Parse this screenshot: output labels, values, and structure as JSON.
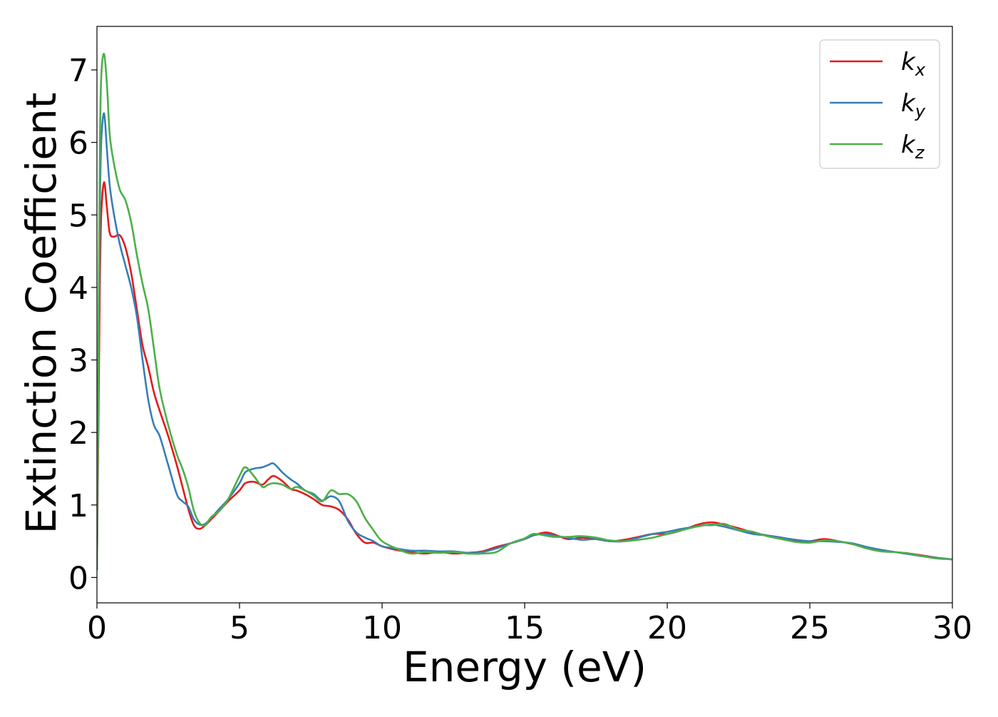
{
  "chart_data": {
    "type": "line",
    "title": "",
    "xlabel": "Energy (eV)",
    "ylabel": "Extinction Coefficient",
    "xlim": [
      0,
      30
    ],
    "ylim": [
      -0.35,
      7.6
    ],
    "xticks": [
      0,
      5,
      10,
      15,
      20,
      25,
      30
    ],
    "yticks": [
      0,
      1,
      2,
      3,
      4,
      5,
      6,
      7
    ],
    "grid": false,
    "legend_position": "top-right",
    "series": [
      {
        "name": "k_x",
        "label_base": "k",
        "label_sub": "x",
        "color": "#e41a1c",
        "x": [
          0,
          0.05,
          0.1,
          0.15,
          0.25,
          0.35,
          0.45,
          0.6,
          0.8,
          1.0,
          1.2,
          1.4,
          1.6,
          1.8,
          2.0,
          2.2,
          2.5,
          2.8,
          3.0,
          3.2,
          3.4,
          3.6,
          3.8,
          4.0,
          4.3,
          4.6,
          5.0,
          5.2,
          5.5,
          5.8,
          6.0,
          6.2,
          6.5,
          6.8,
          7.0,
          7.3,
          7.6,
          7.9,
          8.2,
          8.5,
          8.8,
          9.1,
          9.4,
          9.7,
          10.0,
          10.5,
          11,
          11.5,
          12,
          12.5,
          13,
          13.5,
          14,
          14.5,
          15,
          15.3,
          15.7,
          16,
          16.5,
          17,
          17.5,
          18,
          18.5,
          19,
          19.5,
          20,
          20.5,
          21,
          21.3,
          21.6,
          22,
          22.5,
          23,
          23.5,
          24,
          24.5,
          25,
          25.5,
          26,
          26.5,
          27,
          27.5,
          28,
          28.5,
          29,
          29.5,
          30
        ],
        "y": [
          0.1,
          2.0,
          4.0,
          5.0,
          5.45,
          5.1,
          4.75,
          4.7,
          4.72,
          4.55,
          4.2,
          3.7,
          3.2,
          2.9,
          2.55,
          2.3,
          1.95,
          1.55,
          1.25,
          0.95,
          0.72,
          0.67,
          0.72,
          0.8,
          0.92,
          1.05,
          1.2,
          1.3,
          1.32,
          1.28,
          1.35,
          1.4,
          1.33,
          1.22,
          1.2,
          1.15,
          1.08,
          1.0,
          0.98,
          0.93,
          0.8,
          0.6,
          0.48,
          0.48,
          0.43,
          0.38,
          0.35,
          0.33,
          0.35,
          0.33,
          0.34,
          0.36,
          0.42,
          0.47,
          0.53,
          0.58,
          0.62,
          0.6,
          0.53,
          0.55,
          0.53,
          0.5,
          0.52,
          0.56,
          0.6,
          0.6,
          0.65,
          0.72,
          0.75,
          0.76,
          0.73,
          0.68,
          0.62,
          0.58,
          0.55,
          0.5,
          0.5,
          0.53,
          0.5,
          0.46,
          0.42,
          0.38,
          0.35,
          0.33,
          0.3,
          0.27,
          0.25
        ]
      },
      {
        "name": "k_y",
        "label_base": "k",
        "label_sub": "y",
        "color": "#377eb8",
        "x": [
          0,
          0.05,
          0.1,
          0.15,
          0.25,
          0.35,
          0.45,
          0.6,
          0.8,
          1.0,
          1.2,
          1.4,
          1.6,
          1.8,
          2.0,
          2.2,
          2.5,
          2.8,
          3.0,
          3.2,
          3.4,
          3.6,
          3.8,
          4.0,
          4.3,
          4.6,
          5.0,
          5.2,
          5.5,
          5.8,
          6.0,
          6.2,
          6.5,
          6.8,
          7.0,
          7.3,
          7.6,
          7.9,
          8.2,
          8.5,
          8.8,
          9.1,
          9.4,
          9.7,
          10.0,
          10.5,
          11,
          11.5,
          12,
          12.5,
          13,
          13.5,
          14,
          14.5,
          15,
          15.3,
          15.7,
          16,
          16.5,
          17,
          17.5,
          18,
          18.5,
          19,
          19.5,
          20,
          20.5,
          21,
          21.3,
          21.6,
          22,
          22.5,
          23,
          23.5,
          24,
          24.5,
          25,
          25.5,
          26,
          26.5,
          27,
          27.5,
          28,
          28.5,
          29,
          29.5,
          30
        ],
        "y": [
          0.1,
          2.5,
          5.0,
          6.0,
          6.4,
          5.9,
          5.4,
          5.0,
          4.6,
          4.3,
          4.0,
          3.6,
          3.0,
          2.45,
          2.1,
          1.95,
          1.55,
          1.15,
          1.05,
          0.98,
          0.8,
          0.73,
          0.74,
          0.82,
          0.95,
          1.08,
          1.3,
          1.45,
          1.5,
          1.52,
          1.55,
          1.57,
          1.45,
          1.35,
          1.3,
          1.2,
          1.15,
          1.06,
          1.12,
          1.05,
          0.78,
          0.62,
          0.55,
          0.5,
          0.43,
          0.4,
          0.37,
          0.37,
          0.36,
          0.36,
          0.34,
          0.35,
          0.4,
          0.47,
          0.53,
          0.58,
          0.6,
          0.58,
          0.55,
          0.52,
          0.53,
          0.5,
          0.5,
          0.55,
          0.6,
          0.63,
          0.67,
          0.7,
          0.72,
          0.73,
          0.7,
          0.65,
          0.6,
          0.58,
          0.55,
          0.52,
          0.5,
          0.5,
          0.49,
          0.47,
          0.42,
          0.38,
          0.35,
          0.32,
          0.29,
          0.27,
          0.25
        ]
      },
      {
        "name": "k_z",
        "label_base": "k",
        "label_sub": "z",
        "color": "#4daf4a",
        "x": [
          0,
          0.05,
          0.1,
          0.15,
          0.25,
          0.35,
          0.45,
          0.6,
          0.8,
          1.0,
          1.2,
          1.4,
          1.6,
          1.8,
          2.0,
          2.2,
          2.5,
          2.8,
          3.0,
          3.2,
          3.4,
          3.6,
          3.8,
          4.0,
          4.3,
          4.6,
          5.0,
          5.2,
          5.5,
          5.8,
          6.0,
          6.2,
          6.5,
          6.8,
          7.0,
          7.3,
          7.6,
          7.9,
          8.2,
          8.5,
          8.8,
          9.1,
          9.4,
          9.7,
          10.0,
          10.5,
          11,
          11.5,
          12,
          12.5,
          13,
          13.5,
          14,
          14.5,
          15,
          15.3,
          15.7,
          16,
          16.5,
          17,
          17.5,
          18,
          18.5,
          19,
          19.5,
          20,
          20.5,
          21,
          21.3,
          21.6,
          22,
          22.5,
          23,
          23.5,
          24,
          24.5,
          25,
          25.5,
          26,
          26.5,
          27,
          27.5,
          28,
          28.5,
          29,
          29.5,
          30
        ],
        "y": [
          0.1,
          3.0,
          5.8,
          6.9,
          7.22,
          6.8,
          6.1,
          5.7,
          5.35,
          5.2,
          4.9,
          4.45,
          4.05,
          3.7,
          3.15,
          2.6,
          2.1,
          1.7,
          1.5,
          1.25,
          0.92,
          0.75,
          0.72,
          0.83,
          0.92,
          1.08,
          1.4,
          1.52,
          1.4,
          1.25,
          1.28,
          1.3,
          1.28,
          1.22,
          1.25,
          1.2,
          1.13,
          1.05,
          1.2,
          1.15,
          1.15,
          1.05,
          0.82,
          0.65,
          0.5,
          0.4,
          0.33,
          0.35,
          0.34,
          0.35,
          0.33,
          0.33,
          0.35,
          0.47,
          0.54,
          0.6,
          0.58,
          0.56,
          0.56,
          0.57,
          0.55,
          0.51,
          0.5,
          0.52,
          0.55,
          0.6,
          0.65,
          0.7,
          0.72,
          0.72,
          0.74,
          0.66,
          0.63,
          0.57,
          0.53,
          0.49,
          0.48,
          0.51,
          0.5,
          0.46,
          0.4,
          0.36,
          0.35,
          0.33,
          0.29,
          0.26,
          0.25
        ]
      }
    ]
  }
}
